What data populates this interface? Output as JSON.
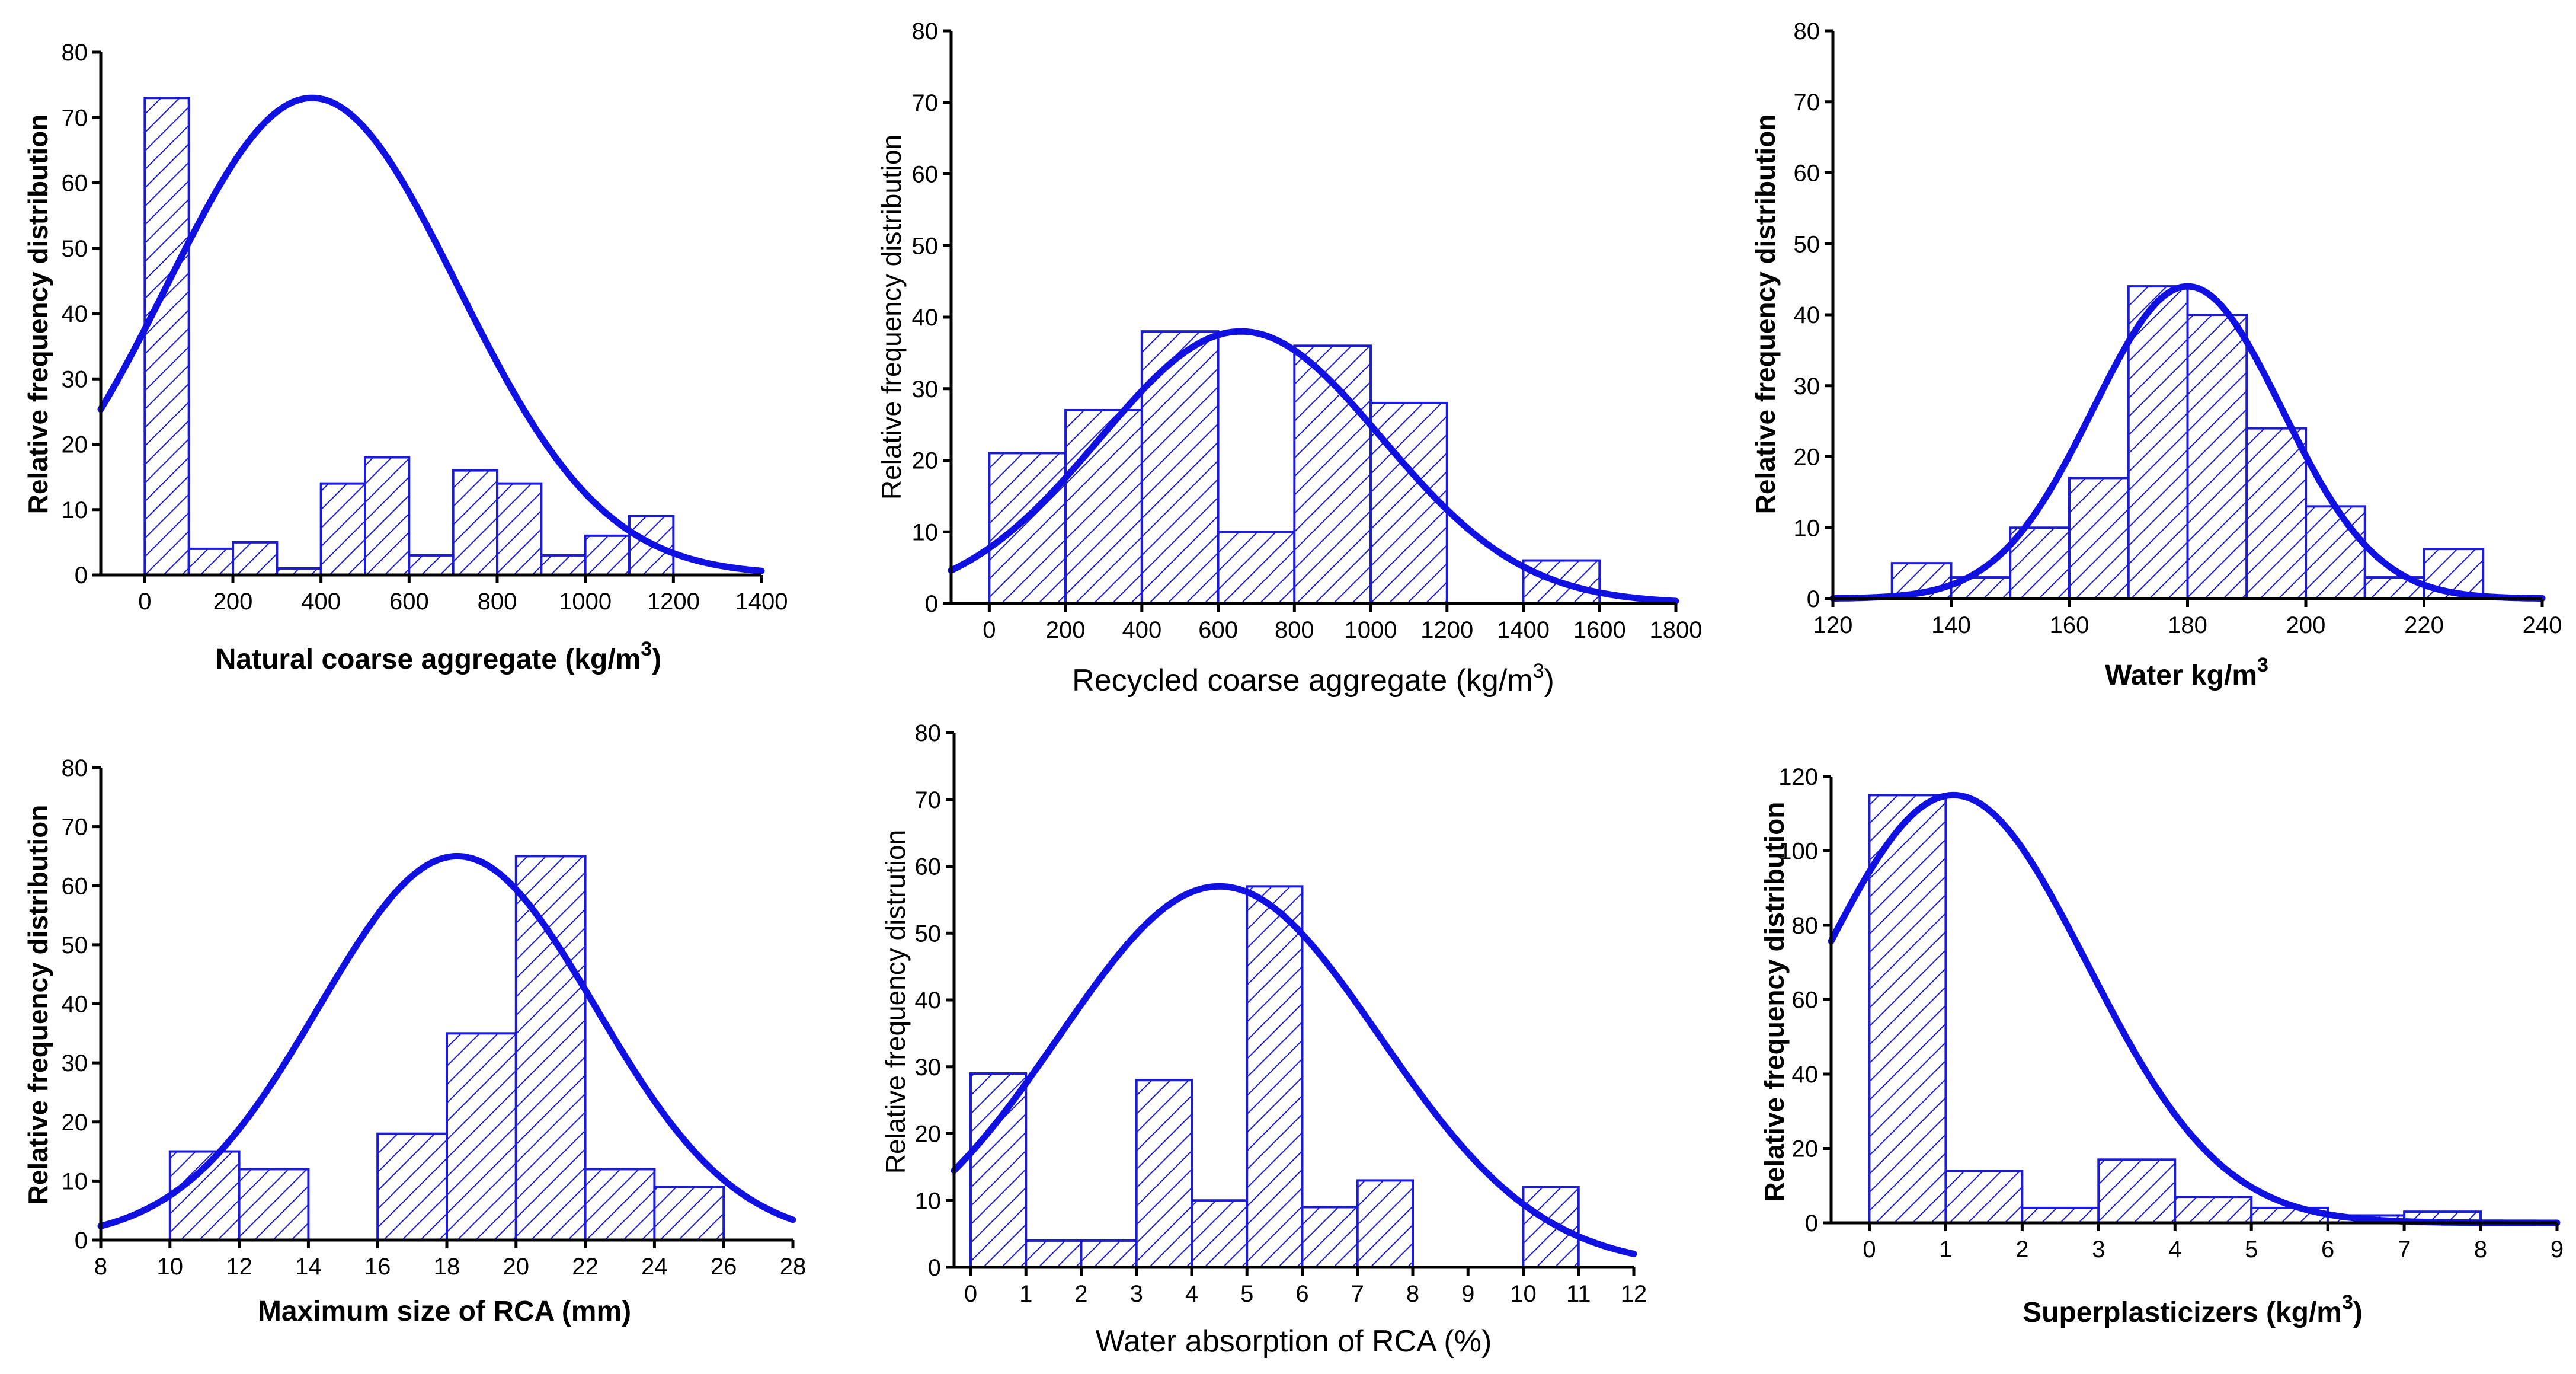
{
  "colors": {
    "bar": "#1c1cd8",
    "curve": "#1010e0",
    "axis": "#000000"
  },
  "chart_data": [
    {
      "type": "bar",
      "title": "",
      "xlabel": "Natural coarse aggregate (kg/m",
      "xlabel_sup": "3",
      "xlabel_end": ")",
      "ylabel": "Relative frequency distribution",
      "xlim": [
        -100,
        1400
      ],
      "ylim": [
        0,
        80
      ],
      "xticks": [
        0,
        200,
        400,
        600,
        800,
        1000,
        1200,
        1400
      ],
      "yticks": [
        0,
        10,
        20,
        30,
        40,
        50,
        60,
        70,
        80
      ],
      "bins": [
        {
          "x0": 0,
          "x1": 100,
          "y": 73
        },
        {
          "x0": 100,
          "x1": 200,
          "y": 4
        },
        {
          "x0": 200,
          "x1": 300,
          "y": 5
        },
        {
          "x0": 300,
          "x1": 400,
          "y": 1
        },
        {
          "x0": 400,
          "x1": 500,
          "y": 14
        },
        {
          "x0": 500,
          "x1": 600,
          "y": 18
        },
        {
          "x0": 600,
          "x1": 700,
          "y": 3
        },
        {
          "x0": 700,
          "x1": 800,
          "y": 16
        },
        {
          "x0": 800,
          "x1": 900,
          "y": 14
        },
        {
          "x0": 900,
          "x1": 1000,
          "y": 3
        },
        {
          "x0": 1000,
          "x1": 1100,
          "y": 6
        },
        {
          "x0": 1100,
          "x1": 1200,
          "y": 9
        }
      ],
      "fit": {
        "type": "normal",
        "mean": 380,
        "sd": 330,
        "peak": 73
      }
    },
    {
      "type": "bar",
      "title": "",
      "xlabel": "Recycled coarse aggregate (kg/m",
      "xlabel_sup": "3",
      "xlabel_end": ")",
      "ylabel": "Relative frequency distribution",
      "xlim": [
        -100,
        1800
      ],
      "ylim": [
        0,
        80
      ],
      "xticks": [
        0,
        200,
        400,
        600,
        800,
        1000,
        1200,
        1400,
        1600,
        1800
      ],
      "yticks": [
        0,
        10,
        20,
        30,
        40,
        50,
        60,
        70,
        80
      ],
      "bins": [
        {
          "x0": 0,
          "x1": 200,
          "y": 21
        },
        {
          "x0": 200,
          "x1": 400,
          "y": 27
        },
        {
          "x0": 400,
          "x1": 600,
          "y": 38
        },
        {
          "x0": 600,
          "x1": 800,
          "y": 10
        },
        {
          "x0": 800,
          "x1": 1000,
          "y": 36
        },
        {
          "x0": 1000,
          "x1": 1200,
          "y": 28
        },
        {
          "x0": 1400,
          "x1": 1600,
          "y": 6
        }
      ],
      "fit": {
        "type": "normal",
        "mean": 660,
        "sd": 370,
        "peak": 38
      }
    },
    {
      "type": "bar",
      "title": "",
      "xlabel": "Water kg/m",
      "xlabel_sup": "3",
      "xlabel_end": "",
      "ylabel": "Relative frequency distribution",
      "xlim": [
        120,
        240
      ],
      "ylim": [
        0,
        80
      ],
      "xticks": [
        120,
        140,
        160,
        180,
        200,
        220,
        240
      ],
      "yticks": [
        0,
        10,
        20,
        30,
        40,
        50,
        60,
        70,
        80
      ],
      "bins": [
        {
          "x0": 130,
          "x1": 140,
          "y": 5
        },
        {
          "x0": 140,
          "x1": 150,
          "y": 3
        },
        {
          "x0": 150,
          "x1": 160,
          "y": 10
        },
        {
          "x0": 160,
          "x1": 170,
          "y": 17
        },
        {
          "x0": 170,
          "x1": 180,
          "y": 44
        },
        {
          "x0": 180,
          "x1": 190,
          "y": 40
        },
        {
          "x0": 190,
          "x1": 200,
          "y": 24
        },
        {
          "x0": 200,
          "x1": 210,
          "y": 13
        },
        {
          "x0": 210,
          "x1": 220,
          "y": 3
        },
        {
          "x0": 220,
          "x1": 230,
          "y": 7
        }
      ],
      "fit": {
        "type": "normal",
        "mean": 180,
        "sd": 16,
        "peak": 44
      }
    },
    {
      "type": "bar",
      "title": "",
      "xlabel": "Maximum size of RCA (mm)",
      "xlabel_sup": "",
      "xlabel_end": "",
      "ylabel": "Relative frequency distribution",
      "xlim": [
        8,
        28
      ],
      "ylim": [
        0,
        80
      ],
      "xticks": [
        8,
        10,
        12,
        14,
        16,
        18,
        20,
        22,
        24,
        26,
        28
      ],
      "yticks": [
        0,
        10,
        20,
        30,
        40,
        50,
        60,
        70,
        80
      ],
      "bins": [
        {
          "x0": 10,
          "x1": 12,
          "y": 15
        },
        {
          "x0": 12,
          "x1": 14,
          "y": 12
        },
        {
          "x0": 16,
          "x1": 18,
          "y": 18
        },
        {
          "x0": 18,
          "x1": 20,
          "y": 35
        },
        {
          "x0": 20,
          "x1": 22,
          "y": 65
        },
        {
          "x0": 22,
          "x1": 24,
          "y": 12
        },
        {
          "x0": 24,
          "x1": 26,
          "y": 9
        }
      ],
      "fit": {
        "type": "normal",
        "mean": 18.3,
        "sd": 4.0,
        "peak": 65
      }
    },
    {
      "type": "bar",
      "title": "",
      "xlabel": "Water absorption of RCA (%)",
      "xlabel_sup": "",
      "xlabel_end": "",
      "ylabel": "Relative frequency distrution",
      "xlim": [
        -0.3,
        12
      ],
      "ylim": [
        0,
        80
      ],
      "xticks": [
        0,
        1,
        2,
        3,
        4,
        5,
        6,
        7,
        8,
        9,
        10,
        11,
        12
      ],
      "yticks": [
        0,
        10,
        20,
        30,
        40,
        50,
        60,
        70,
        80
      ],
      "bins": [
        {
          "x0": 0,
          "x1": 1,
          "y": 29
        },
        {
          "x0": 1,
          "x1": 2,
          "y": 4
        },
        {
          "x0": 2,
          "x1": 3,
          "y": 4
        },
        {
          "x0": 3,
          "x1": 4,
          "y": 28
        },
        {
          "x0": 4,
          "x1": 5,
          "y": 10
        },
        {
          "x0": 5,
          "x1": 6,
          "y": 57
        },
        {
          "x0": 6,
          "x1": 7,
          "y": 9
        },
        {
          "x0": 7,
          "x1": 8,
          "y": 13
        },
        {
          "x0": 10,
          "x1": 11,
          "y": 12
        }
      ],
      "fit": {
        "type": "normal",
        "mean": 4.5,
        "sd": 2.9,
        "peak": 57
      }
    },
    {
      "type": "bar",
      "title": "",
      "xlabel": "Superplasticizers (kg/m",
      "xlabel_sup": "3",
      "xlabel_end": ")",
      "ylabel": "Relative frequency distribution",
      "xlim": [
        -0.5,
        9
      ],
      "ylim": [
        0,
        120
      ],
      "xticks": [
        0,
        1,
        2,
        3,
        4,
        5,
        6,
        7,
        8,
        9
      ],
      "yticks": [
        0,
        20,
        40,
        60,
        80,
        100,
        120
      ],
      "bins": [
        {
          "x0": 0,
          "x1": 1,
          "y": 115
        },
        {
          "x0": 1,
          "x1": 2,
          "y": 14
        },
        {
          "x0": 2,
          "x1": 3,
          "y": 4
        },
        {
          "x0": 3,
          "x1": 4,
          "y": 17
        },
        {
          "x0": 4,
          "x1": 5,
          "y": 7
        },
        {
          "x0": 5,
          "x1": 6,
          "y": 4
        },
        {
          "x0": 6,
          "x1": 7,
          "y": 2
        },
        {
          "x0": 7,
          "x1": 8,
          "y": 3
        }
      ],
      "fit": {
        "type": "normal",
        "mean": 1.1,
        "sd": 1.75,
        "peak": 115
      }
    }
  ]
}
